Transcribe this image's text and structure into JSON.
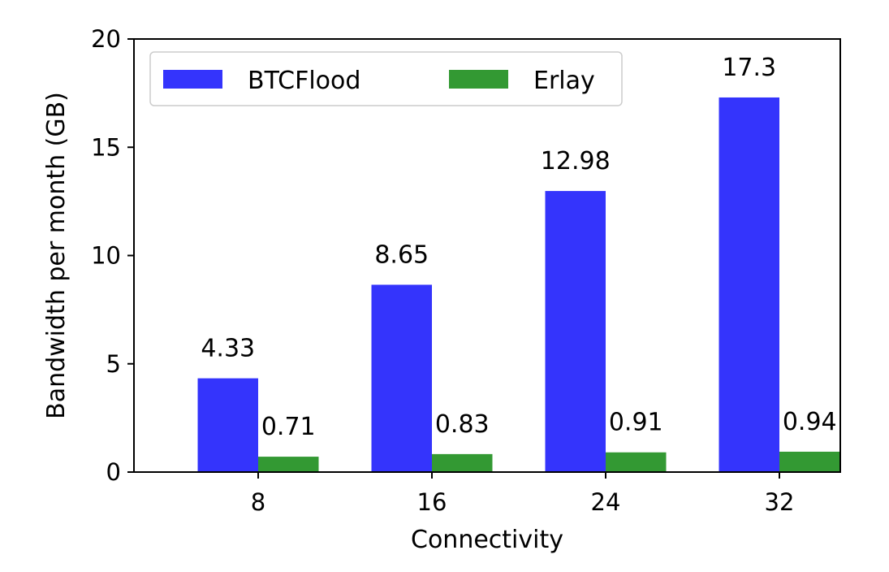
{
  "chart_data": {
    "type": "bar",
    "categories": [
      "8",
      "16",
      "24",
      "32"
    ],
    "series": [
      {
        "name": "BTCFlood",
        "values": [
          4.33,
          8.65,
          12.98,
          17.3
        ],
        "labels": [
          "4.33",
          "8.65",
          "12.98",
          "17.3"
        ],
        "color": "#3434fc"
      },
      {
        "name": "Erlay",
        "values": [
          0.71,
          0.83,
          0.91,
          0.94
        ],
        "labels": [
          "0.71",
          "0.83",
          "0.91",
          "0.94"
        ],
        "color": "#339933"
      }
    ],
    "title": "",
    "xlabel": "Connectivity",
    "ylabel": "Bandwidth per month (GB)",
    "ylim": [
      0,
      20
    ],
    "yticks": [
      "0",
      "5",
      "10",
      "15",
      "20"
    ],
    "grid": false,
    "legend": "top-left"
  }
}
